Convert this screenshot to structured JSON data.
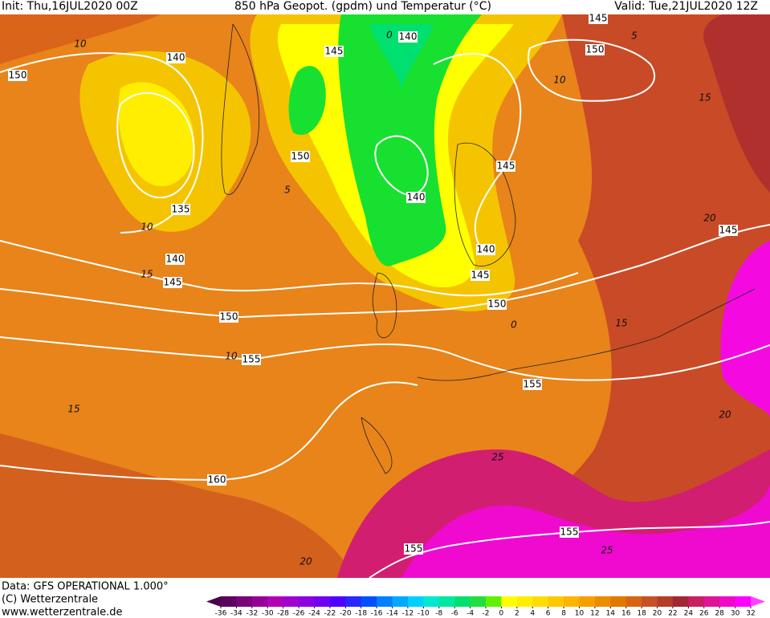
{
  "header": {
    "init": "Init: Thu,16JUL2020 00Z",
    "title": "850 hPa Geopot. (gpdm) und Temperatur (°C)",
    "valid": "Valid: Tue,21JUL2020 12Z"
  },
  "contour_labels": [
    "140",
    "150",
    "145",
    "140",
    "145",
    "150",
    "150",
    "145",
    "140",
    "135",
    "140",
    "145",
    "140",
    "145",
    "150",
    "150",
    "155",
    "145",
    "155",
    "160",
    "155",
    "155"
  ],
  "isotherm_labels": [
    "10",
    "10",
    "15",
    "10",
    "15",
    "5",
    "10",
    "15",
    "20",
    "0",
    "15",
    "20",
    "25",
    "25",
    "20",
    "0",
    "5"
  ],
  "footer": {
    "data": "Data: GFS OPERATIONAL 1.000°",
    "copyright": "(C) Wetterzentrale",
    "url": "www.wetterzentrale.de"
  },
  "colorbar": {
    "ticks": [
      -36,
      -34,
      -32,
      -30,
      -28,
      -26,
      -24,
      -22,
      -20,
      -18,
      -16,
      -14,
      -12,
      -10,
      -8,
      -6,
      -4,
      -2,
      0,
      2,
      4,
      6,
      8,
      10,
      12,
      14,
      16,
      18,
      20,
      22,
      24,
      26,
      28,
      30,
      32
    ],
    "colors": [
      "#5c005c",
      "#780078",
      "#960096",
      "#b400b4",
      "#a000d0",
      "#8c00e0",
      "#7000f0",
      "#5000ff",
      "#2828ff",
      "#0050ff",
      "#0080ff",
      "#00a8ff",
      "#00d0ff",
      "#00e8d0",
      "#00e8a0",
      "#00e070",
      "#20e040",
      "#60f000",
      "#ffff00",
      "#ffee00",
      "#ffdc00",
      "#ffc800",
      "#ffb400",
      "#f5a000",
      "#eb8c00",
      "#e17800",
      "#d76414",
      "#c85028",
      "#b43c28",
      "#a02832",
      "#c81e64",
      "#e01496",
      "#f00ac8",
      "#ff00ff"
    ],
    "below_color": "#4b004b",
    "above_color": "#ff40ff"
  }
}
